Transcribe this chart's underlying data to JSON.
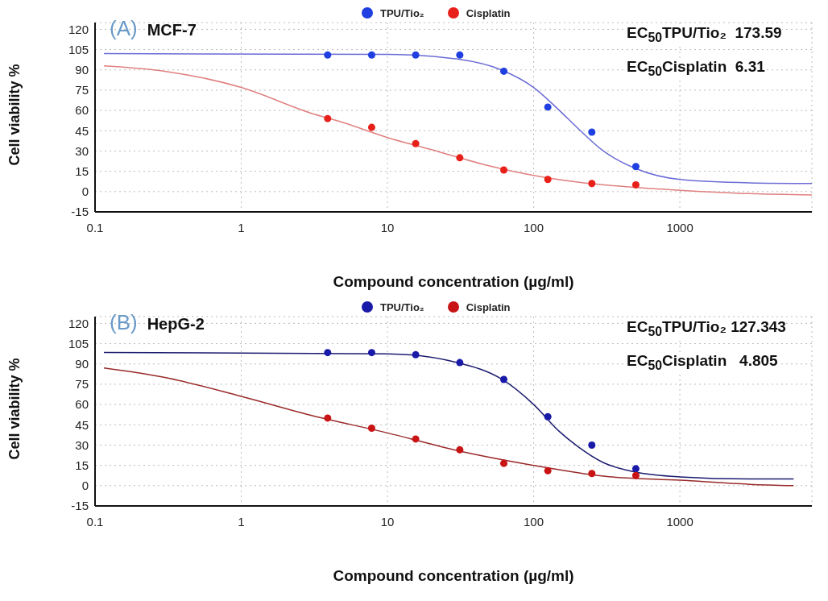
{
  "chart_data": [
    {
      "type": "scatter",
      "title": "MCF-7",
      "xlabel": "Compound concentration (µg/ml)",
      "ylabel": "Cell viability %",
      "annotations": [
        "(A)",
        "EC$_{50}$TPU/Tio₂  173.59",
        "EC$_{50}$Cisplatin  6.31"
      ],
      "log": "x",
      "xlim": [
        0.1,
        8000
      ],
      "xticks": [
        0.1,
        1,
        10,
        100,
        1000
      ],
      "ylim": [
        -15,
        125
      ],
      "yticks": [
        -15,
        0,
        15,
        30,
        45,
        60,
        75,
        90,
        105,
        120
      ],
      "grid": true,
      "legend": "top",
      "marker": "circle",
      "series": [
        {
          "type": "line",
          "color": "#6b6bd6",
          "marker": "none",
          "x": [
            0.115,
            10,
            30,
            60,
            100,
            150,
            200,
            300,
            500,
            1000,
            3000,
            8000
          ],
          "values": [
            102,
            101.5,
            98,
            90,
            77,
            60,
            47,
            30,
            17,
            9,
            6.5,
            6
          ]
        },
        {
          "type": "line",
          "color": "#e08080",
          "marker": "none",
          "x": [
            0.115,
            0.3,
            1,
            3,
            5,
            10,
            20,
            50,
            100,
            200,
            500,
            1000,
            3000,
            8000
          ],
          "values": [
            93,
            89,
            77,
            58,
            51,
            40,
            31,
            19,
            12,
            7,
            3,
            1,
            -1.5,
            -2.5
          ]
        },
        {
          "name": "TPU/Tio₂",
          "color": "#1f3fe0",
          "x": [
            3.9,
            7.8,
            15.6,
            31.25,
            62.5,
            125,
            250,
            500
          ],
          "values": [
            101,
            101,
            101,
            101,
            89,
            62.5,
            44,
            18.5
          ]
        },
        {
          "name": "Cisplatin",
          "color": "#e8201a",
          "x": [
            3.9,
            7.8,
            15.6,
            31.25,
            62.5,
            125,
            250,
            500
          ],
          "values": [
            54,
            47.5,
            35.5,
            25,
            16,
            9,
            6,
            5
          ]
        }
      ]
    },
    {
      "type": "scatter",
      "title": "HepG-2",
      "xlabel": "Compound concentration (µg/ml)",
      "ylabel": "Cell viability %",
      "annotations": [
        "(B)",
        "EC$_{50}$TPU/Tio₂ 127.343",
        "EC$_{50}$Cisplatin   4.805"
      ],
      "log": "x",
      "xlim": [
        0.1,
        8000
      ],
      "xticks": [
        0.1,
        1,
        10,
        100,
        1000
      ],
      "ylim": [
        -15,
        125
      ],
      "yticks": [
        -15,
        0,
        15,
        30,
        45,
        60,
        75,
        90,
        105,
        120
      ],
      "grid": true,
      "legend": "top",
      "marker": "circle",
      "series": [
        {
          "type": "line",
          "color": "#1c1c70",
          "marker": "none",
          "x": [
            0.115,
            10,
            30,
            60,
            100,
            150,
            200,
            300,
            500,
            1000,
            3000,
            6000
          ],
          "values": [
            98.5,
            97.5,
            91,
            79,
            60,
            40,
            29,
            17,
            10,
            6.5,
            5,
            5
          ]
        },
        {
          "type": "line",
          "color": "#9a2a2a",
          "marker": "none",
          "x": [
            0.115,
            0.3,
            1,
            3,
            10,
            30,
            100,
            300,
            1000,
            3000,
            6000
          ],
          "values": [
            87,
            80,
            66,
            52,
            39,
            26,
            15,
            7,
            4,
            1,
            0
          ]
        },
        {
          "name": "TPU/Tio₂",
          "color": "#1a1aa8",
          "x": [
            3.9,
            7.8,
            15.6,
            31.25,
            62.5,
            125,
            250,
            500
          ],
          "values": [
            98.4,
            98.4,
            96.8,
            91,
            78.5,
            51,
            30,
            12.5
          ]
        },
        {
          "name": "Cisplatin",
          "color": "#c81414",
          "x": [
            3.9,
            7.8,
            15.6,
            31.25,
            62.5,
            125,
            250,
            500
          ],
          "values": [
            50,
            42.5,
            34.5,
            26.5,
            16.5,
            11,
            9,
            7.5
          ]
        }
      ]
    }
  ]
}
